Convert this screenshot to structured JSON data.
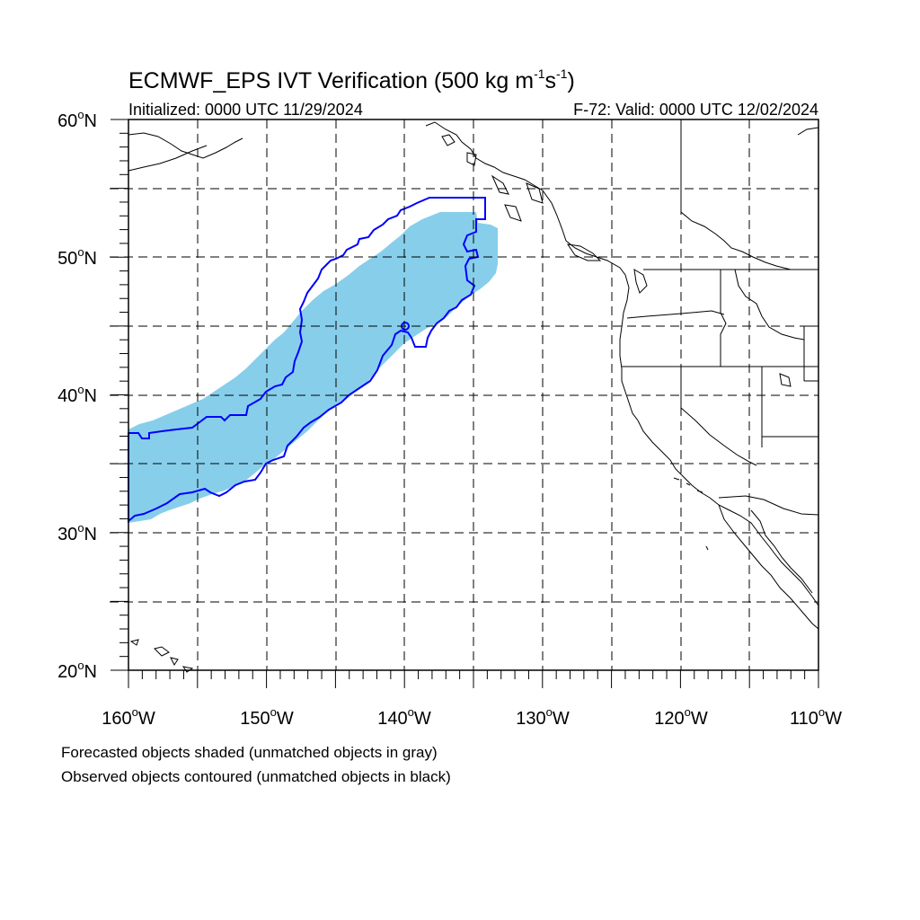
{
  "title": {
    "main": "ECMWF_EPS IVT Verification (500 kg m",
    "sup1": "-1",
    "mid": "s",
    "sup2": "-1",
    "end": ")"
  },
  "initialized": "Initialized: 0000 UTC 11/29/2024",
  "valid": "F-72: Valid: 0000 UTC 12/02/2024",
  "lat_labels": [
    "60",
    "50",
    "40",
    "30",
    "20"
  ],
  "lat_hemisphere": "N",
  "lon_labels": [
    "160",
    "150",
    "140",
    "130",
    "120",
    "110"
  ],
  "lon_hemisphere": "W",
  "degree_symbol": "o",
  "footnotes": [
    "Forecasted objects shaded (unmatched objects in gray)",
    "Observed objects contoured (unmatched objects in black)"
  ],
  "colors": {
    "forecast_fill": "#87ceeb",
    "observed_contour": "#0000ff",
    "coastline": "#000000",
    "grid": "#000000"
  },
  "map": {
    "projection": "cylindrical equidistant",
    "lon_range": [
      -160,
      -110
    ],
    "lat_range": [
      20,
      60
    ],
    "grid_spacing_deg": 5,
    "grid_style": "dashed"
  }
}
